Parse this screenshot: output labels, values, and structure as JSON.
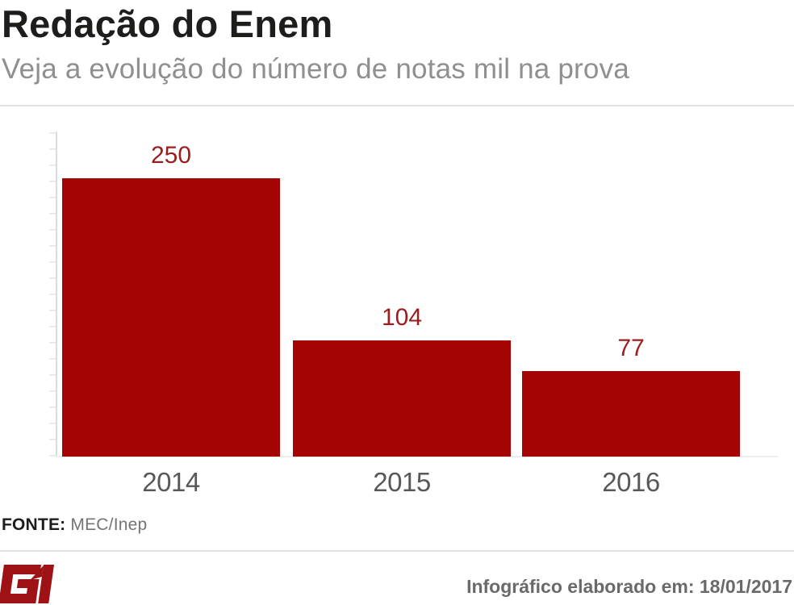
{
  "header": {
    "title": "Redação do Enem",
    "subtitle": "Veja a evolução do número de notas mil na prova"
  },
  "chart_data": {
    "type": "bar",
    "title": "Redação do Enem",
    "subtitle": "Veja a evolução do número de notas mil na prova",
    "categories": [
      "2014",
      "2015",
      "2016"
    ],
    "values": [
      250,
      104,
      77
    ],
    "xlabel": "",
    "ylabel": "",
    "ylim": [
      0,
      250
    ],
    "grid": false,
    "legend": false,
    "bar_color": "#a50404",
    "value_label_color": "#9e1b1e"
  },
  "source": {
    "label": "FONTE:",
    "value": "MEC/Inep"
  },
  "footer": {
    "logo_name": "G1",
    "logo_color": "#9e1216",
    "credit": "Infográfico elaborado em: 18/01/2017"
  }
}
